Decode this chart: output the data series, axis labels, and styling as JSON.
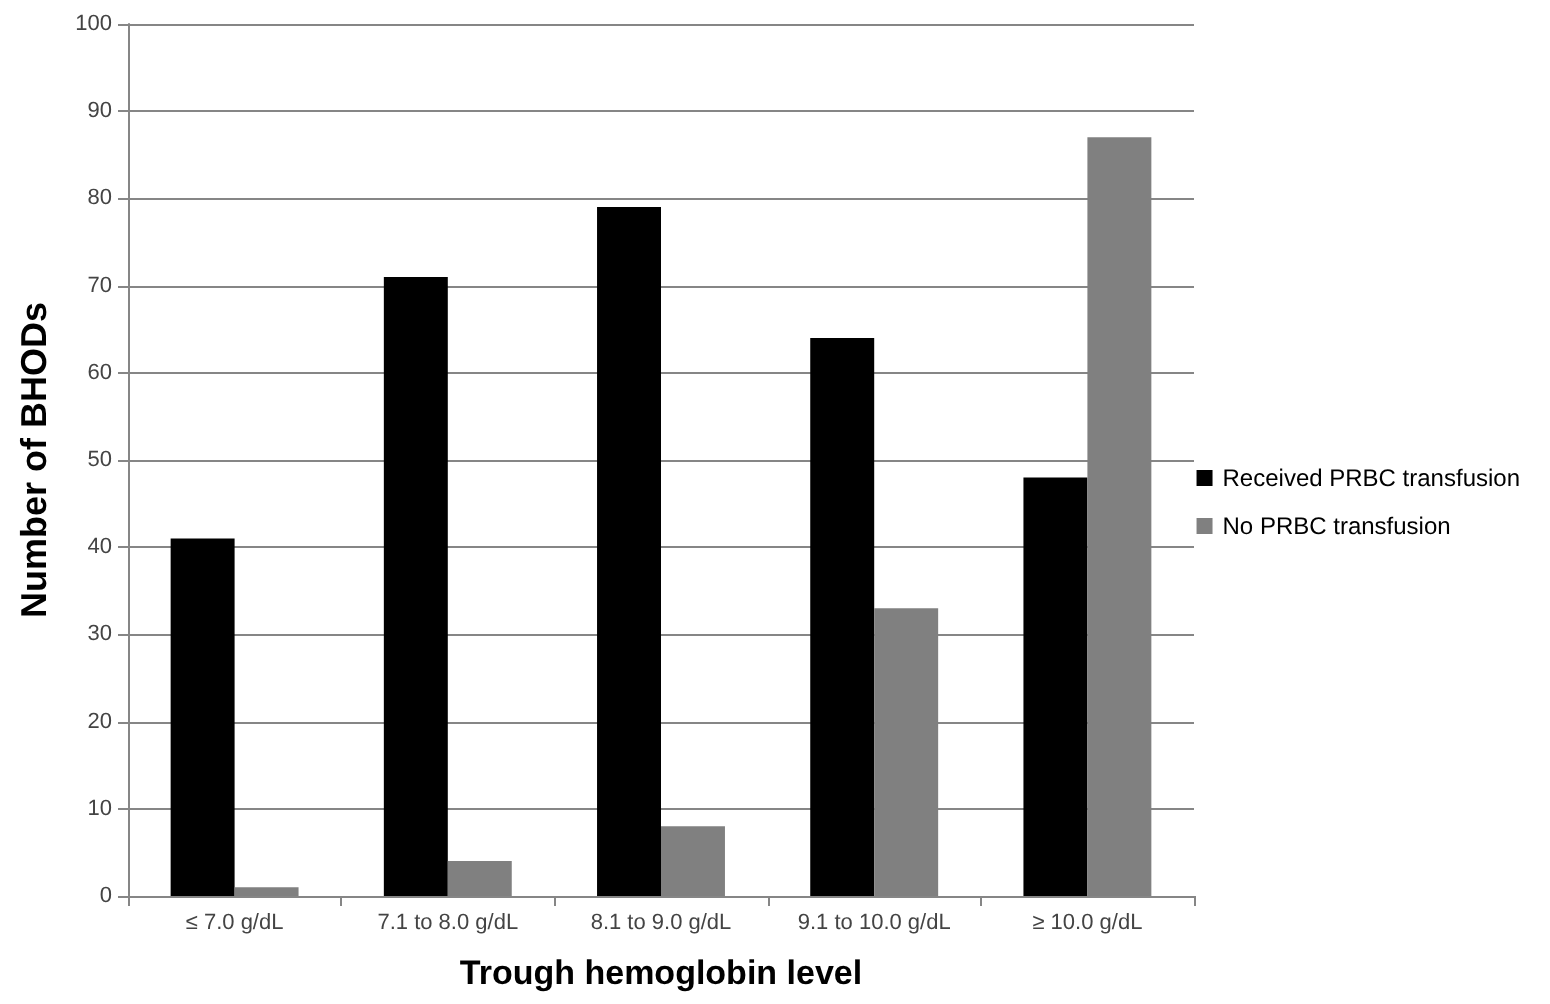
{
  "chart_data": {
    "type": "bar",
    "xlabel": "Trough hemoglobin level",
    "ylabel": "Number of BHODs",
    "categories": [
      "≤ 7.0 g/dL",
      "7.1 to 8.0 g/dL",
      "8.1 to 9.0 g/dL",
      "9.1 to 10.0 g/dL",
      "≥ 10.0 g/dL"
    ],
    "series": [
      {
        "name": "Received PRBC transfusion",
        "color": "#000000",
        "values": [
          41,
          71,
          79,
          64,
          48
        ]
      },
      {
        "name": "No PRBC transfusion",
        "color": "#808080",
        "values": [
          1,
          4,
          8,
          33,
          87
        ]
      }
    ],
    "ylim": [
      0,
      100
    ],
    "yticks": [
      0,
      10,
      20,
      30,
      40,
      50,
      60,
      70,
      80,
      90,
      100
    ],
    "grid": "y",
    "legend": "right"
  }
}
